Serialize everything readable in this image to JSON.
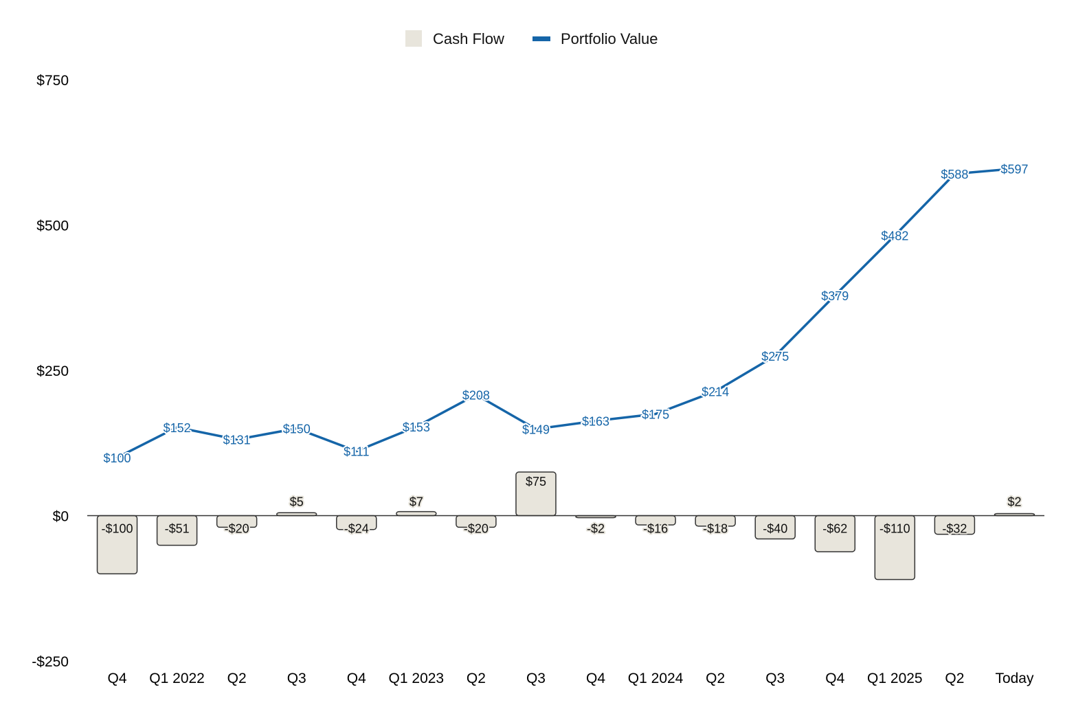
{
  "chart_data": {
    "type": "bar",
    "title": "",
    "xlabel": "",
    "ylabel": "",
    "categories": [
      "Q4",
      "Q1 2022",
      "Q2",
      "Q3",
      "Q4",
      "Q1 2023",
      "Q2",
      "Q3",
      "Q4",
      "Q1 2024",
      "Q2",
      "Q3",
      "Q4",
      "Q1 2025",
      "Q2",
      "Today"
    ],
    "ylim": [
      -250,
      750
    ],
    "yticks": [
      {
        "value": 750,
        "label": "$750"
      },
      {
        "value": 500,
        "label": "$500"
      },
      {
        "value": 250,
        "label": "$250"
      },
      {
        "value": 0,
        "label": "$0"
      },
      {
        "value": -250,
        "label": "-$250"
      }
    ],
    "grid": false,
    "legend_position": "top-center",
    "series": [
      {
        "name": "Cash Flow",
        "type": "bar",
        "color": "#e8e5dc",
        "edge_color": "#333333",
        "values": [
          -100,
          -51,
          -20,
          5,
          -24,
          7,
          -20,
          75,
          -2,
          -16,
          -18,
          -40,
          -62,
          -110,
          -32,
          2
        ],
        "labels": [
          "-$100",
          "-$51",
          "-$20",
          "$5",
          "-$24",
          "$7",
          "-$20",
          "$75",
          "-$2",
          "-$16",
          "-$18",
          "-$40",
          "-$62",
          "-$110",
          "-$32",
          "$2"
        ]
      },
      {
        "name": "Portfolio Value",
        "type": "line",
        "color": "#1565a8",
        "values": [
          100,
          152,
          131,
          150,
          111,
          153,
          208,
          149,
          163,
          175,
          214,
          275,
          379,
          482,
          588,
          597
        ],
        "labels": [
          "$100",
          "$152",
          "$131",
          "$150",
          "$111",
          "$153",
          "$208",
          "$149",
          "$163",
          "$175",
          "$214",
          "$275",
          "$379",
          "$482",
          "$588",
          "$597"
        ]
      }
    ]
  }
}
